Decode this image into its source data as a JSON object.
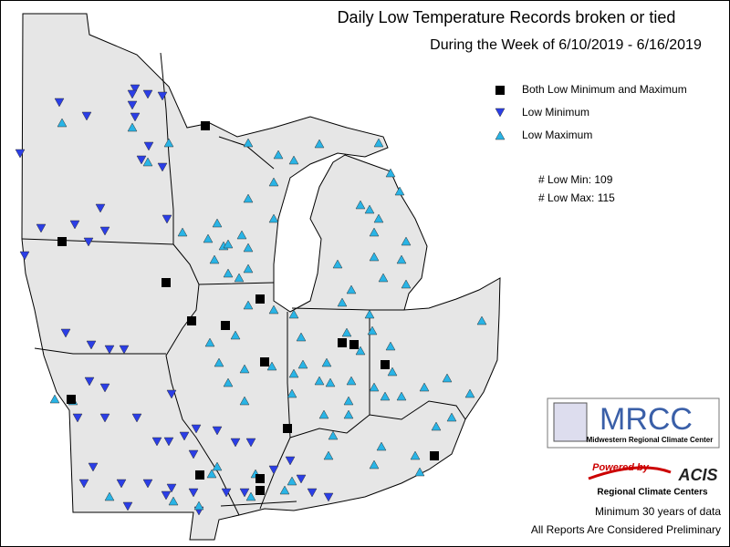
{
  "header": {
    "title": "Daily Low Temperature Records broken or tied",
    "subtitle": "During the Week of 6/10/2019 - 6/16/2019"
  },
  "legend": {
    "items": [
      "Both Low Minimum and Maximum",
      "Low Minimum",
      "Low Maximum"
    ]
  },
  "counts": [
    "# Low Min: 109",
    "# Low Max: 115"
  ],
  "logos": {
    "mrcc": "MRCC",
    "mrcc_name": "Midwestern Regional Climate Center",
    "powered": "Powered by",
    "acis": "ACIS",
    "rcc": "Regional Climate Centers"
  },
  "footer": [
    "Minimum 30 years of data",
    "All Reports Are Considered Preliminary"
  ]
}
